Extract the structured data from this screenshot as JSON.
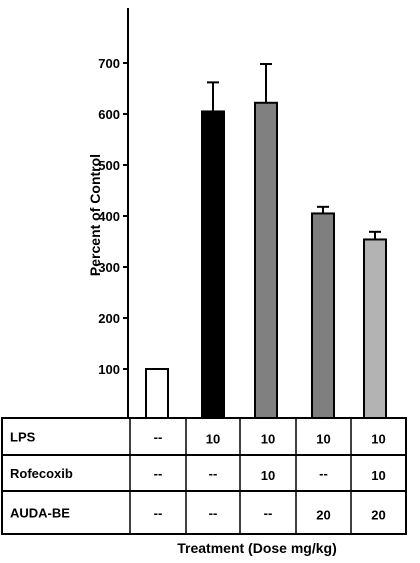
{
  "chart_data": {
    "type": "bar",
    "ylabel": "Percent of Control",
    "xlabel": "Treatment (Dose mg/kg)",
    "ylim": [
      0,
      800
    ],
    "yticks": [
      100,
      200,
      300,
      400,
      500,
      600,
      700
    ],
    "bars": [
      {
        "value": 100,
        "error": null,
        "color": "#ffffff"
      },
      {
        "value": 605,
        "error": 57,
        "color": "#000000"
      },
      {
        "value": 622,
        "error": 76,
        "color": "#808080"
      },
      {
        "value": 405,
        "error": 13,
        "color": "#7f7f7f"
      },
      {
        "value": 354,
        "error": 15,
        "color": "#b3b3b3"
      }
    ],
    "table": {
      "rows": [
        {
          "label": "LPS",
          "values": [
            "--",
            "10",
            "10",
            "10",
            "10"
          ]
        },
        {
          "label": "Rofecoxib",
          "values": [
            "--",
            "--",
            "10",
            "--",
            "10"
          ]
        },
        {
          "label": "AUDA-BE",
          "values": [
            "--",
            "--",
            "--",
            "20",
            "20"
          ]
        }
      ]
    }
  }
}
